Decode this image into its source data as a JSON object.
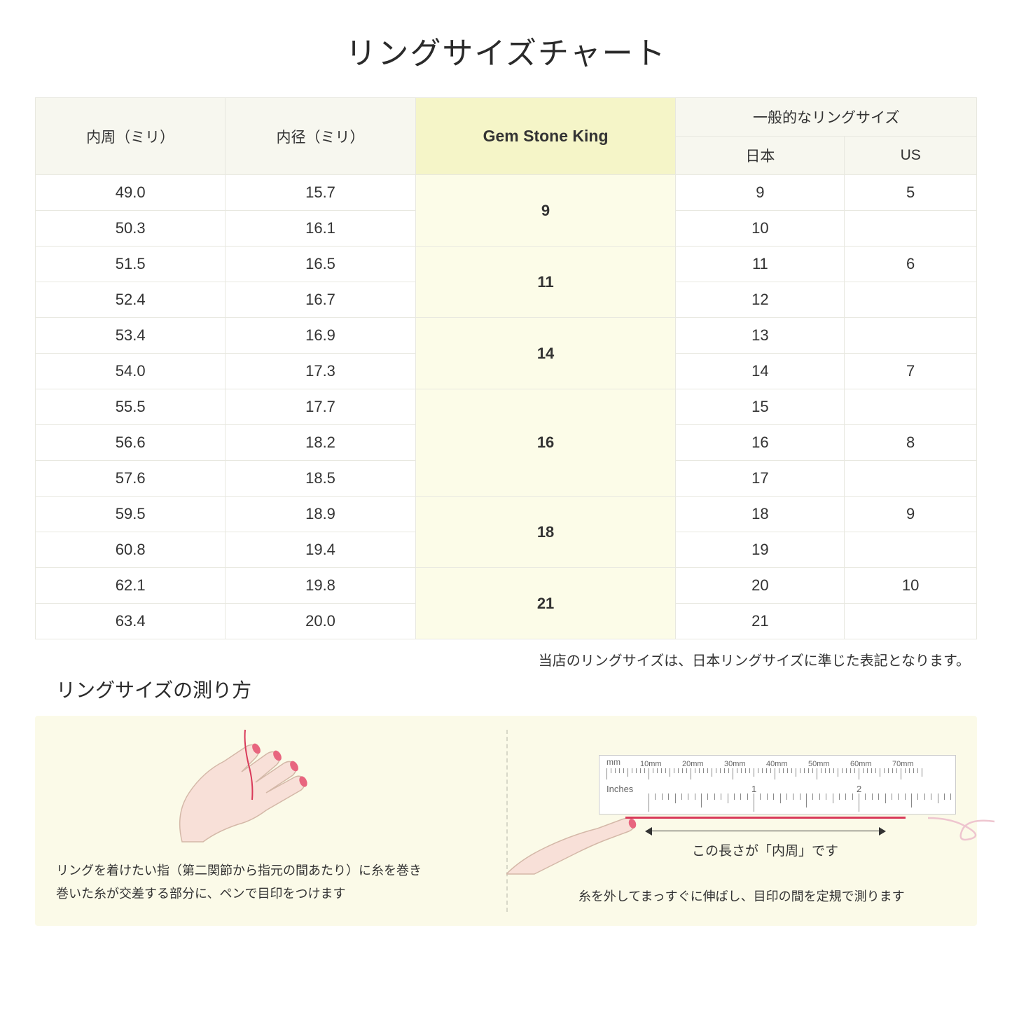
{
  "title": "リングサイズチャート",
  "table": {
    "headers": {
      "circumference": "内周（ミリ）",
      "diameter": "内径（ミリ）",
      "gsk": "Gem Stone King",
      "common": "一般的なリングサイズ",
      "japan": "日本",
      "us": "US"
    },
    "groups": [
      {
        "gsk": "9",
        "rows": [
          {
            "c": "49.0",
            "d": "15.7",
            "jp": "9",
            "us": "5"
          },
          {
            "c": "50.3",
            "d": "16.1",
            "jp": "10",
            "us": ""
          }
        ]
      },
      {
        "gsk": "11",
        "rows": [
          {
            "c": "51.5",
            "d": "16.5",
            "jp": "11",
            "us": "6"
          },
          {
            "c": "52.4",
            "d": "16.7",
            "jp": "12",
            "us": ""
          }
        ]
      },
      {
        "gsk": "14",
        "rows": [
          {
            "c": "53.4",
            "d": "16.9",
            "jp": "13",
            "us": ""
          },
          {
            "c": "54.0",
            "d": "17.3",
            "jp": "14",
            "us": "7"
          }
        ]
      },
      {
        "gsk": "16",
        "rows": [
          {
            "c": "55.5",
            "d": "17.7",
            "jp": "15",
            "us": ""
          },
          {
            "c": "56.6",
            "d": "18.2",
            "jp": "16",
            "us": "8"
          },
          {
            "c": "57.6",
            "d": "18.5",
            "jp": "17",
            "us": ""
          }
        ]
      },
      {
        "gsk": "18",
        "rows": [
          {
            "c": "59.5",
            "d": "18.9",
            "jp": "18",
            "us": "9"
          },
          {
            "c": "60.8",
            "d": "19.4",
            "jp": "19",
            "us": ""
          }
        ]
      },
      {
        "gsk": "21",
        "rows": [
          {
            "c": "62.1",
            "d": "19.8",
            "jp": "20",
            "us": "10"
          },
          {
            "c": "63.4",
            "d": "20.0",
            "jp": "21",
            "us": ""
          }
        ]
      }
    ]
  },
  "note": "当店のリングサイズは、日本リングサイズに準じた表記となります。",
  "subtitle": "リングサイズの測り方",
  "instructions": {
    "left": "リングを着けたい指（第二関節から指元の間あたり）に糸を巻き\n巻いた糸が交差する部分に、ペンで目印をつけます",
    "right": "糸を外してまっすぐに伸ばし、目印の間を定規で測ります",
    "arrow_label": "この長さが「内周」です",
    "ruler_mm": "mm",
    "ruler_inches": "Inches",
    "ruler_mm_labels": [
      "10mm",
      "20mm",
      "30mm",
      "40mm",
      "50mm",
      "60mm",
      "70mm"
    ],
    "ruler_inch_labels": [
      "1",
      "2"
    ]
  },
  "colors": {
    "header_bg": "#f7f7ef",
    "highlight_header_bg": "#f5f5c8",
    "highlight_cell_bg": "#fcfce8",
    "border": "#e8e8e0",
    "instructions_bg": "#fbfae8",
    "thread": "#d93a5a",
    "hand_fill": "#f8e0d8",
    "nail": "#e8657f"
  }
}
